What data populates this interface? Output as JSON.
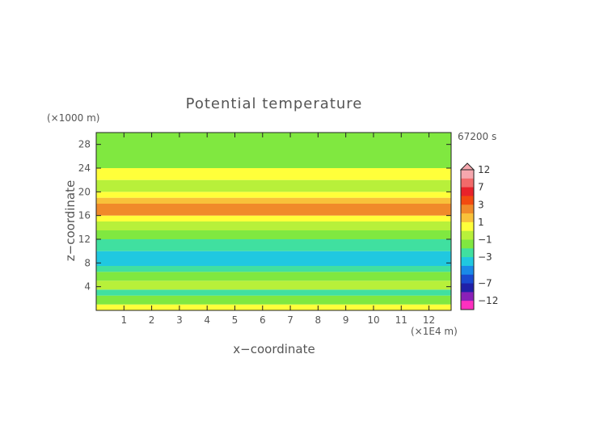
{
  "chart_data": {
    "type": "heatmap",
    "title": "Potential temperature",
    "xlabel": "x−coordinate",
    "ylabel": "z−coordinate",
    "x_unit": "(×1E4 m)",
    "y_unit": "(×1000 m)",
    "time_label": "67200 s",
    "xlim": [
      0,
      12.8
    ],
    "ylim": [
      0,
      30
    ],
    "x_ticks": [
      "1",
      "2",
      "3",
      "4",
      "5",
      "6",
      "7",
      "8",
      "9",
      "10",
      "11",
      "12"
    ],
    "y_ticks": [
      "4",
      "8",
      "12",
      "16",
      "20",
      "24",
      "28"
    ],
    "colorbar": {
      "labels": [
        "12",
        "7",
        "3",
        "1",
        "−1",
        "−3",
        "−7",
        "−12"
      ],
      "levels": [
        12,
        9,
        7,
        5,
        3,
        2,
        1,
        0,
        -1,
        -2,
        -3,
        -4,
        -5,
        -7,
        -9,
        -12
      ],
      "colors": [
        "#f6a7ae",
        "#f26a6a",
        "#e8222a",
        "#f24a10",
        "#f08a2a",
        "#f8c13a",
        "#ffff3a",
        "#b8f03a",
        "#80e840",
        "#40e0a0",
        "#20c8e0",
        "#1a8ae8",
        "#1a4ad0",
        "#2020a8",
        "#8a20b8",
        "#ff30c0"
      ]
    },
    "bands": [
      {
        "z": [
          0,
          1
        ],
        "value": 1
      },
      {
        "z": [
          1,
          2.5
        ],
        "value": -1
      },
      {
        "z": [
          2.5,
          3.5
        ],
        "value": -2
      },
      {
        "z": [
          3.5,
          5
        ],
        "value": 0
      },
      {
        "z": [
          5,
          6.5
        ],
        "value": -1
      },
      {
        "z": [
          6.5,
          7.5
        ],
        "value": -2
      },
      {
        "z": [
          7.5,
          10
        ],
        "value": -3
      },
      {
        "z": [
          10,
          12
        ],
        "value": -2
      },
      {
        "z": [
          12,
          13.5
        ],
        "value": -1
      },
      {
        "z": [
          13.5,
          15
        ],
        "value": 0
      },
      {
        "z": [
          15,
          16
        ],
        "value": 1
      },
      {
        "z": [
          16,
          18
        ],
        "value": 3
      },
      {
        "z": [
          18,
          19
        ],
        "value": 2
      },
      {
        "z": [
          19,
          20
        ],
        "value": 1
      },
      {
        "z": [
          20,
          22
        ],
        "value": 0
      },
      {
        "z": [
          22,
          24
        ],
        "value": 1
      },
      {
        "z": [
          24,
          30
        ],
        "value": -1
      }
    ]
  }
}
